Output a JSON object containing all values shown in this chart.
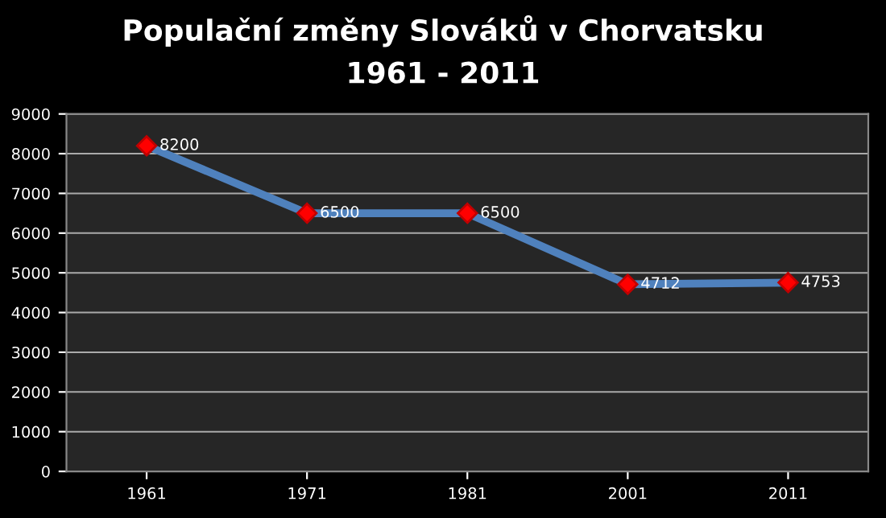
{
  "chart_data": {
    "type": "line",
    "title": "Populační změny Slováků v Chorvatsku",
    "subtitle": "1961 - 2011",
    "categories": [
      "1961",
      "1971",
      "1981",
      "2001",
      "2011"
    ],
    "series": [
      {
        "color": "#4f81bd",
        "colors": [
          "#ff0000",
          "#ff0000",
          "#ff0000",
          "#ff0000",
          "#ff0000"
        ],
        "values": [
          8200,
          6500,
          6500,
          4712,
          4753
        ]
      }
    ],
    "ylim": [
      0,
      9000
    ],
    "yticks": [
      0,
      1000,
      2000,
      3000,
      4000,
      5000,
      6000,
      7000,
      8000,
      9000
    ],
    "grid": "y",
    "marker": "diamond",
    "line_style": "solid",
    "data_labels": true
  }
}
